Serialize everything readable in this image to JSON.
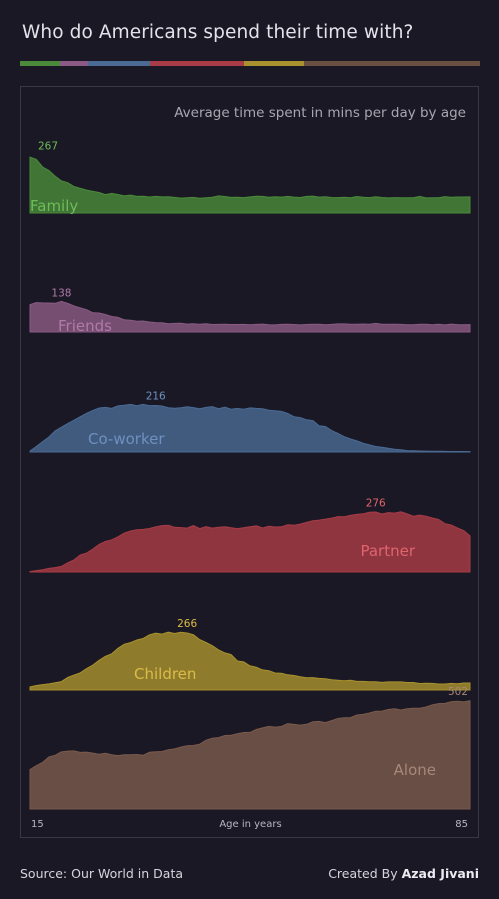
{
  "title": "Who do Americans spend their time with?",
  "subtitle": "Average time spent in mins per day by age",
  "source": "Source: Our World in Data",
  "credit_prefix": "Created By",
  "credit_name": "Azad Jivani",
  "colors": {
    "Family": "#4a8a3a",
    "Friends": "#8a5a84",
    "Co-worker": "#4a6a94",
    "Partner": "#a83c46",
    "Children": "#a8912e",
    "Alone": "#7a5a4c",
    "label_Family": "#6cbd57",
    "label_Friends": "#b07aa9",
    "label_Co-worker": "#6e90c0",
    "label_Partner": "#e0646c",
    "label_Children": "#dcbc48",
    "label_Alone": "#a8877a"
  },
  "chart_data": {
    "type": "area",
    "xlabel": "Age in years",
    "xlim": [
      15,
      85
    ],
    "x_tick_labels": [
      "15",
      "85"
    ],
    "x": [
      15,
      20,
      25,
      30,
      35,
      40,
      45,
      50,
      55,
      60,
      65,
      70,
      75,
      80,
      85
    ],
    "series": [
      {
        "name": "Family",
        "peak_label": "267",
        "values": [
          267,
          150,
          95,
          80,
          75,
          72,
          75,
          74,
          73,
          76,
          75,
          72,
          74,
          75,
          76
        ]
      },
      {
        "name": "Friends",
        "peak_label": "138",
        "values": [
          132,
          138,
          95,
          58,
          42,
          38,
          36,
          35,
          34,
          35,
          36,
          38,
          34,
          35,
          34
        ]
      },
      {
        "name": "Co-worker",
        "peak_label": "216",
        "values": [
          5,
          115,
          195,
          215,
          216,
          205,
          208,
          202,
          190,
          140,
          70,
          25,
          6,
          3,
          2
        ]
      },
      {
        "name": "Partner",
        "peak_label": "276",
        "values": [
          2,
          25,
          110,
          185,
          215,
          210,
          205,
          208,
          212,
          240,
          260,
          276,
          272,
          240,
          175
        ]
      },
      {
        "name": "Children",
        "peak_label": "266",
        "values": [
          15,
          40,
          115,
          215,
          260,
          266,
          190,
          110,
          75,
          55,
          45,
          38,
          35,
          28,
          32
        ]
      },
      {
        "name": "Alone",
        "peak_label": "502",
        "values": [
          190,
          270,
          255,
          250,
          260,
          290,
          330,
          360,
          390,
          400,
          420,
          455,
          470,
          485,
          502
        ]
      }
    ]
  }
}
